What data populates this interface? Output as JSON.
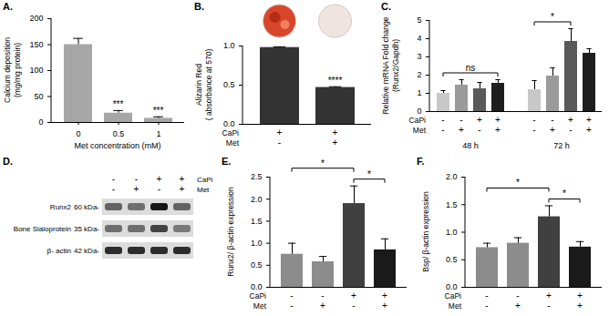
{
  "chart_data": [
    {
      "title": "A.",
      "type": "bar",
      "categories": [
        "0",
        "0.5",
        "1"
      ],
      "values": [
        150,
        18,
        8
      ],
      "errors": [
        12,
        5,
        3
      ],
      "color": "#a6a6a6",
      "x_label": "Met concentration (mM)",
      "y_label": "Calcium deposition\n(mg/mg protein)",
      "ylim": [
        0,
        200
      ],
      "yticks": [
        0,
        50,
        100,
        150,
        200
      ],
      "annotations": [
        {
          "text": "***",
          "at": 1
        },
        {
          "text": "***",
          "at": 2
        }
      ]
    },
    {
      "title": "B.",
      "type": "bar",
      "categories": [
        null,
        null
      ],
      "values": [
        0.98,
        0.47
      ],
      "errors": [
        0.01,
        0.01
      ],
      "color": "#333333",
      "tick_labels": "y",
      "y_label": "Alizarin Red\n( absorbance at 570)",
      "ylim": [
        0,
        1.0
      ],
      "yticks": [
        {
          "value": 0,
          "label": "0.0"
        },
        {
          "value": 0.5,
          "label": "0.5"
        },
        {
          "value": 1.0,
          "label": "1.0"
        }
      ],
      "condition_rows": [
        {
          "label": "CaPi",
          "values": [
            "+",
            "+"
          ]
        },
        {
          "label": "Met",
          "values": [
            "-",
            "+"
          ]
        }
      ],
      "annotations": [
        {
          "text": "****",
          "at": 1
        }
      ]
    },
    {
      "title": "C.",
      "type": "bar",
      "categories": [
        "48 h",
        "72 h"
      ],
      "series": [
        {
          "color": "#c8c8c8",
          "values": [
            1.0,
            1.2
          ],
          "errors": [
            0.15,
            0.5
          ]
        },
        {
          "color": "#9a9a9a",
          "values": [
            1.45,
            1.95
          ],
          "errors": [
            0.3,
            0.45
          ]
        },
        {
          "color": "#5a5a5a",
          "values": [
            1.25,
            3.85
          ],
          "errors": [
            0.35,
            0.7
          ]
        },
        {
          "color": "#1e1e1e",
          "values": [
            1.55,
            3.2
          ],
          "errors": [
            0.2,
            0.25
          ]
        }
      ],
      "tick_labels": "y",
      "y_label": "Relative mRNA Fold change\n(Runx2/Gapdh)",
      "ylim": [
        0,
        5
      ],
      "yticks": [
        0,
        1,
        2,
        3,
        4,
        5
      ],
      "condition_rows": [
        {
          "label": "CaPi",
          "values": [
            "-",
            "-",
            "+",
            "+"
          ]
        },
        {
          "label": "Met",
          "values": [
            "-",
            "+",
            "-",
            "+"
          ]
        }
      ],
      "annotations": [
        {
          "text": "ns",
          "group": 0,
          "between": [
            0,
            3
          ]
        },
        {
          "text": "*",
          "group": 1,
          "between": [
            0,
            2
          ]
        }
      ]
    },
    {
      "title": "E.",
      "type": "bar",
      "categories": [
        null,
        null,
        null,
        null
      ],
      "values": [
        0.75,
        0.58,
        1.9,
        0.85
      ],
      "errors": [
        0.25,
        0.12,
        0.4,
        0.25
      ],
      "colors": [
        "#8c8c8c",
        "#8c8c8c",
        "#404040",
        "#1a1a1a"
      ],
      "tick_labels": "y",
      "y_label": "Runx2/ β-actin expression",
      "ylim": [
        0,
        2.5
      ],
      "yticks": [
        {
          "value": 0,
          "label": "0.0"
        },
        {
          "value": 0.5,
          "label": "0.5"
        },
        {
          "value": 1.0,
          "label": "1.0"
        },
        {
          "value": 1.5,
          "label": "1.5"
        },
        {
          "value": 2.0,
          "label": "2.0"
        },
        {
          "value": 2.5,
          "label": "2.5"
        }
      ],
      "condition_rows": [
        {
          "label": "CaPi",
          "values": [
            "-",
            "-",
            "+",
            "+"
          ]
        },
        {
          "label": "Met",
          "values": [
            "-",
            "+",
            "-",
            "+"
          ]
        }
      ],
      "annotations": [
        {
          "text": "*",
          "between": [
            2,
            3
          ]
        },
        {
          "text": "*",
          "between": [
            0,
            2
          ]
        }
      ]
    },
    {
      "title": "F.",
      "type": "bar",
      "categories": [
        null,
        null,
        null,
        null
      ],
      "values": [
        0.72,
        0.8,
        1.28,
        0.73
      ],
      "errors": [
        0.08,
        0.1,
        0.2,
        0.1
      ],
      "colors": [
        "#8c8c8c",
        "#8c8c8c",
        "#404040",
        "#1a1a1a"
      ],
      "tick_labels": "y",
      "y_label": "Bsp/ β-actin expression",
      "ylim": [
        0,
        2.0
      ],
      "yticks": [
        {
          "value": 0,
          "label": "0.0"
        },
        {
          "value": 0.5,
          "label": "0.5"
        },
        {
          "value": 1.0,
          "label": "1.0"
        },
        {
          "value": 1.5,
          "label": "1.5"
        },
        {
          "value": 2.0,
          "label": "2.0"
        }
      ],
      "condition_rows": [
        {
          "label": "CaPi",
          "values": [
            "-",
            "-",
            "+",
            "+"
          ]
        },
        {
          "label": "Met",
          "values": [
            "-",
            "+",
            "-",
            "+"
          ]
        }
      ],
      "annotations": [
        {
          "text": "*",
          "between": [
            2,
            3
          ]
        },
        {
          "text": "*",
          "between": [
            0,
            2
          ]
        }
      ]
    }
  ],
  "blot": {
    "title": "D.",
    "condition_rows": [
      {
        "label": "CaPi",
        "values": [
          "-",
          "-",
          "+",
          "+"
        ]
      },
      {
        "label": "Met",
        "values": [
          "-",
          "+",
          "-",
          "+"
        ]
      }
    ],
    "bands": [
      {
        "protein": "Runx2",
        "size": "60 kDa-",
        "intensity": [
          0.55,
          0.5,
          0.9,
          0.55
        ]
      },
      {
        "protein": "Bone Sialoprotein",
        "size": "35 kDa-",
        "intensity": [
          0.5,
          0.5,
          0.7,
          0.45
        ]
      },
      {
        "protein": "β- actin",
        "size": "42 kDa-",
        "intensity": [
          0.8,
          0.8,
          0.8,
          0.8
        ]
      }
    ]
  }
}
